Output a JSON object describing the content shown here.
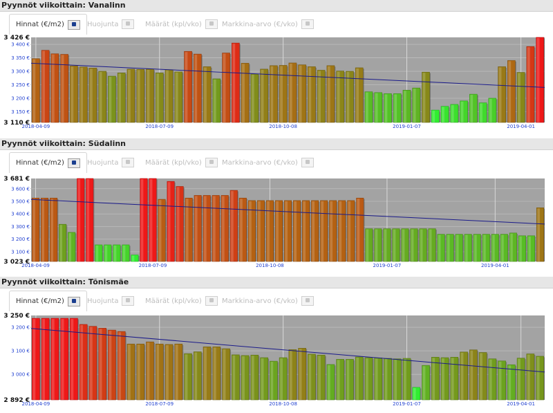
{
  "tabs": [
    {
      "label": "Hinnat (€/m2)",
      "active": true
    },
    {
      "label": "Huojunta",
      "active": false
    },
    {
      "label": "Määrät (kpl/vko)",
      "active": false
    },
    {
      "label": "Markkina-arvo (€/vko)",
      "active": false
    }
  ],
  "chart_data": [
    {
      "type": "bar",
      "title": "Pyynnöt viikoittain: Vanalinn",
      "x_tick_labels": [
        "2018-04-09",
        "2018-07-09",
        "2018-10-08",
        "2019-01-07",
        "2019-04-01"
      ],
      "y_extreme_labels": [
        "3 426 €",
        "3 110 €"
      ],
      "y_tick_labels": [
        "3 400 €",
        "3 350 €",
        "3 300 €",
        "3 250 €",
        "3 200 €",
        "3 150 €"
      ],
      "ylim": [
        3110,
        3426
      ],
      "y_ticks": [
        3400,
        3350,
        3300,
        3250,
        3200,
        3150
      ],
      "x_tick_index": [
        0,
        13,
        26,
        39,
        51
      ],
      "values": [
        3347,
        3378,
        3365,
        3363,
        3320,
        3316,
        3312,
        3300,
        3282,
        3294,
        3308,
        3307,
        3308,
        3294,
        3306,
        3298,
        3374,
        3364,
        3317,
        3272,
        3368,
        3405,
        3330,
        3290,
        3308,
        3321,
        3322,
        3331,
        3324,
        3317,
        3304,
        3321,
        3301,
        3300,
        3313,
        3224,
        3221,
        3217,
        3217,
        3230,
        3238,
        3297,
        3156,
        3170,
        3177,
        3190,
        3215,
        3183,
        3200,
        3317,
        3340,
        3296,
        3392,
        3426
      ],
      "trend": [
        3330,
        3240
      ],
      "grid": true
    },
    {
      "type": "bar",
      "title": "Pyynnöt viikoittain: Südalinn",
      "x_tick_labels": [
        "2018-04-09",
        "2018-07-09",
        "2018-10-08",
        "2019-01-07",
        "2019-04-01"
      ],
      "y_extreme_labels": [
        "3 681 €",
        "3 023 €"
      ],
      "y_tick_labels": [
        "3 600 €",
        "3 500 €",
        "3 400 €",
        "3 300 €",
        "3 200 €",
        "3 100 €"
      ],
      "ylim": [
        3023,
        3681
      ],
      "y_ticks": [
        3600,
        3500,
        3400,
        3300,
        3200,
        3100
      ],
      "x_tick_index": [
        0,
        13,
        26,
        39,
        51
      ],
      "values": [
        3526,
        3526,
        3526,
        3318,
        3254,
        3681,
        3681,
        3155,
        3155,
        3155,
        3155,
        3075,
        3681,
        3681,
        3516,
        3658,
        3618,
        3526,
        3547,
        3547,
        3547,
        3547,
        3587,
        3526,
        3506,
        3506,
        3506,
        3506,
        3506,
        3506,
        3506,
        3506,
        3506,
        3506,
        3506,
        3506,
        3526,
        3283,
        3283,
        3283,
        3283,
        3283,
        3283,
        3283,
        3283,
        3239,
        3239,
        3239,
        3239,
        3239,
        3239,
        3239,
        3239,
        3249,
        3227,
        3227,
        3449
      ],
      "trend": [
        3515,
        3320
      ],
      "grid": true
    },
    {
      "type": "bar",
      "title": "Pyynnöt viikoittain: Tõnismäe",
      "x_tick_labels": [
        "2018-04-09",
        "2018-07-09",
        "2018-10-08",
        "2019-01-07",
        "2019-04-01"
      ],
      "y_extreme_labels": [
        "3 250 €",
        "2 892 €"
      ],
      "y_tick_labels": [
        "3 200 €",
        "3 100 €",
        "3 000 €"
      ],
      "ylim": [
        2892,
        3250
      ],
      "y_ticks": [
        3200,
        3100,
        3000
      ],
      "x_tick_index": [
        0,
        13,
        26,
        39,
        51
      ],
      "values": [
        3238,
        3238,
        3238,
        3238,
        3238,
        3212,
        3204,
        3196,
        3188,
        3182,
        3129,
        3129,
        3138,
        3129,
        3127,
        3129,
        3088,
        3096,
        3117,
        3117,
        3109,
        3083,
        3080,
        3082,
        3071,
        3056,
        3071,
        3105,
        3111,
        3086,
        3082,
        3042,
        3064,
        3064,
        3074,
        3071,
        3070,
        3068,
        3066,
        3068,
        2945,
        3038,
        3073,
        3071,
        3073,
        3095,
        3104,
        3093,
        3066,
        3057,
        3041,
        3069,
        3087,
        3077
      ],
      "trend": [
        3195,
        3010
      ],
      "grid": true
    }
  ]
}
